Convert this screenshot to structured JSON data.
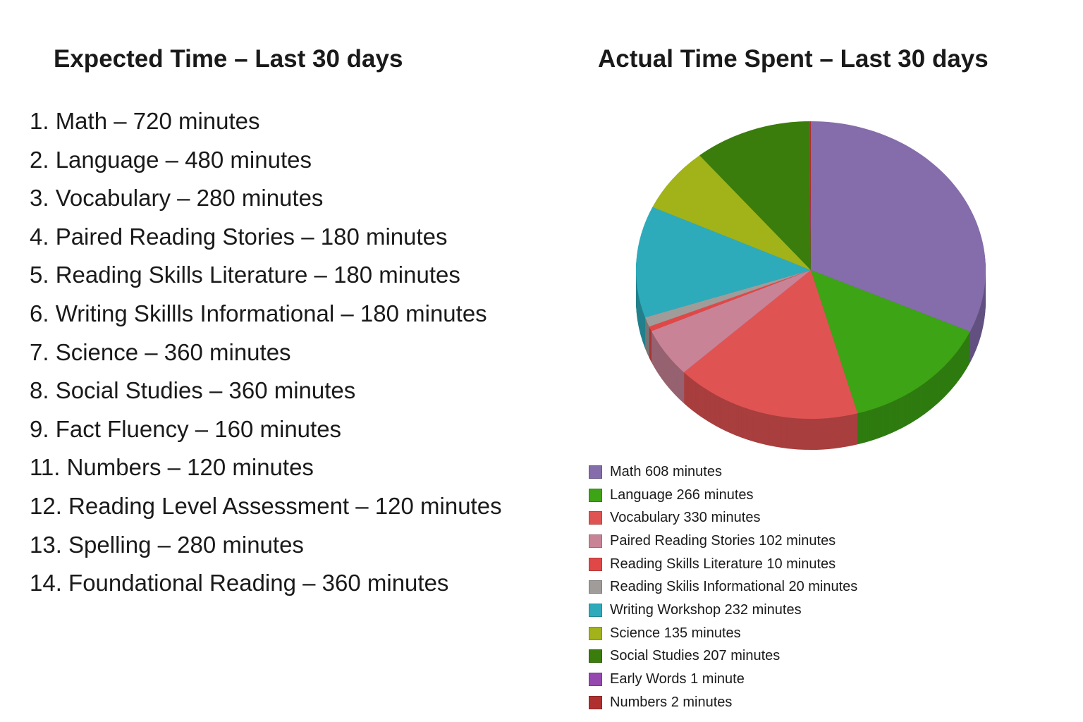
{
  "left": {
    "title": "Expected Time – Last 30 days",
    "items": [
      "1. Math – 720 minutes",
      "2. Language – 480 minutes",
      "3. Vocabulary – 280 minutes",
      "4. Paired Reading Stories – 180 minutes",
      "5. Reading Skills Literature – 180 minutes",
      "6. Writing Skillls Informational – 180 minutes",
      "7. Science – 360 minutes",
      "8. Social Studies – 360 minutes",
      "9. Fact Fluency – 160 minutes",
      "11. Numbers – 120 minutes",
      "12. Reading Level Assessment – 120 minutes",
      "13. Spelling – 280 minutes",
      "14. Foundational Reading – 360 minutes"
    ]
  },
  "chart_data": {
    "type": "pie",
    "title": "Actual Time Spent – Last 30 days",
    "style": "3d",
    "legend_position": "bottom-left",
    "series": [
      {
        "name": "Math",
        "value": 608,
        "label": "Math 608 minutes",
        "color": "#846daa"
      },
      {
        "name": "Language",
        "value": 266,
        "label": "Language 266 minutes",
        "color": "#3da415"
      },
      {
        "name": "Vocabulary",
        "value": 330,
        "label": "Vocabulary 330 minutes",
        "color": "#e05353"
      },
      {
        "name": "Paired Reading Stories",
        "value": 102,
        "label": "Paired Reading Stories 102 minutes",
        "color": "#c88397"
      },
      {
        "name": "Reading Skills Literature",
        "value": 10,
        "label": "Reading Skills Literature 10 minutes",
        "color": "#e04848"
      },
      {
        "name": "Reading Skilis Informational",
        "value": 20,
        "label": "Reading Skilis Informational 20 minutes",
        "color": "#a09c9a"
      },
      {
        "name": "Writing Workshop",
        "value": 232,
        "label": "Writing Workshop 232 minutes",
        "color": "#2eabbb"
      },
      {
        "name": "Science",
        "value": 135,
        "label": "Science 135 minutes",
        "color": "#a1b319"
      },
      {
        "name": "Social Studies",
        "value": 207,
        "label": "Social Studies 207 minutes",
        "color": "#3a7d0c"
      },
      {
        "name": "Early Words",
        "value": 1,
        "label": "Early Words 1 minute",
        "color": "#9548b0"
      },
      {
        "name": "Numbers",
        "value": 2,
        "label": "Numbers 2 minutes",
        "color": "#b03030"
      }
    ]
  }
}
